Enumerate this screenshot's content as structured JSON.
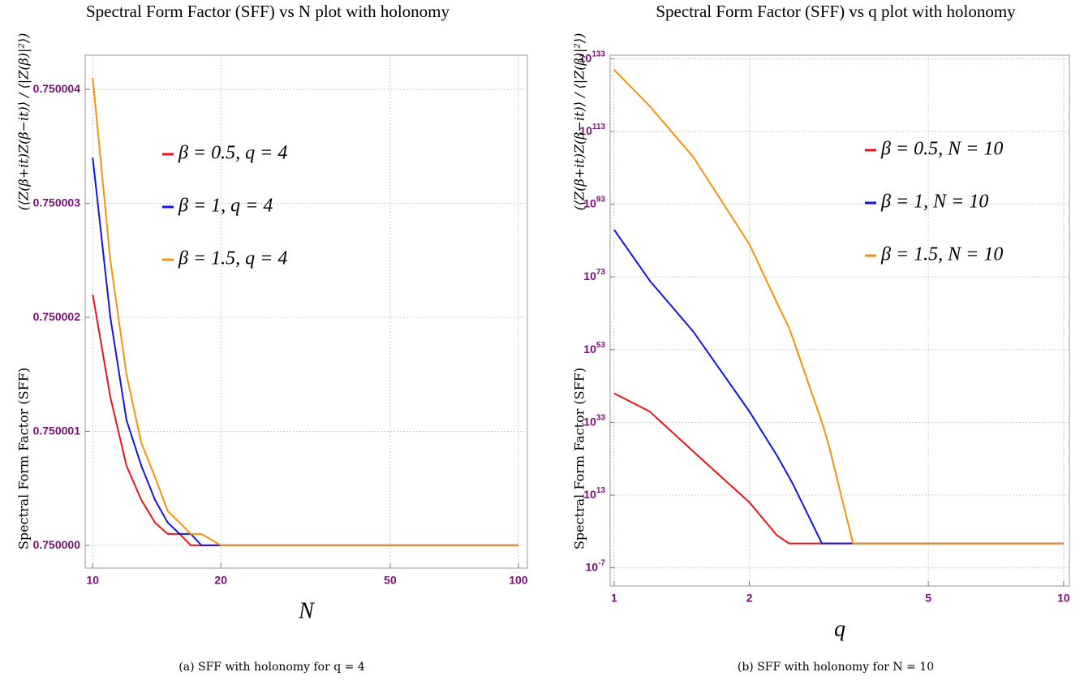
{
  "chart_data": [
    {
      "type": "line",
      "title": "Spectral Form Factor (SFF) vs N plot with holonomy",
      "x_label": "N",
      "y_label": "Spectral Form Factor (SFF)",
      "y_label_formula": "(⟨Z(β+it)Z(β−it)⟩ / ⟨|Z(β)|²⟩)",
      "caption": "(a) SFF with holonomy for q = 4",
      "log_x": true,
      "log_y": false,
      "grid": true,
      "legend": "upper-left",
      "xlim": [
        9.6,
        105
      ],
      "xticks": [
        10,
        20,
        50,
        100
      ],
      "ylim": [
        0.7499998,
        0.7500043
      ],
      "yticks": [
        {
          "value": 0.75,
          "label": "0.750000"
        },
        {
          "value": 0.750001,
          "label": "0.750001"
        },
        {
          "value": 0.750002,
          "label": "0.750002"
        },
        {
          "value": 0.750003,
          "label": "0.750003"
        },
        {
          "value": 0.750004,
          "label": "0.750004"
        }
      ],
      "x": [
        10,
        11,
        12,
        13,
        14,
        15,
        16,
        17,
        18,
        20,
        30,
        50,
        100
      ],
      "series": [
        {
          "name": "β = 0.5, q = 4",
          "color": "#e8141b",
          "values": [
            0.7500022,
            0.7500013,
            0.7500007,
            0.7500004,
            0.7500002,
            0.7500001,
            0.7500001,
            0.75,
            0.75,
            0.75,
            0.75,
            0.75,
            0.75
          ]
        },
        {
          "name": "β = 1, q = 4",
          "color": "#1414e0",
          "values": [
            0.7500034,
            0.750002,
            0.7500011,
            0.7500007,
            0.7500004,
            0.7500002,
            0.7500001,
            0.7500001,
            0.75,
            0.75,
            0.75,
            0.75,
            0.75
          ]
        },
        {
          "name": "β = 1.5, q = 4",
          "color": "#f4920f",
          "values": [
            0.7500041,
            0.7500025,
            0.7500015,
            0.7500009,
            0.7500006,
            0.7500003,
            0.7500002,
            0.7500001,
            0.7500001,
            0.75,
            0.75,
            0.75,
            0.75
          ]
        }
      ]
    },
    {
      "type": "line",
      "title": "Spectral Form Factor (SFF) vs q plot with holonomy",
      "x_label": "q",
      "y_label": "Spectral Form Factor (SFF)",
      "y_label_formula": "(⟨Z(β+it)Z(β−it)⟩ / ⟨|Z(β)|²⟩)",
      "caption": "(b) SFF with holonomy for N = 10",
      "log_x": true,
      "log_y": true,
      "grid": true,
      "legend": "upper-right",
      "xlim": [
        0.98,
        10.3
      ],
      "xticks": [
        1,
        2,
        5,
        10
      ],
      "ylim": [
        1e-12,
        1e+134
      ],
      "yticks": [
        {
          "value": 1e-07,
          "label": "10",
          "exponent": "-7"
        },
        {
          "value": 10000000000000.0,
          "label": "10",
          "exponent": "13"
        },
        {
          "value": 1e+33,
          "label": "10",
          "exponent": "33"
        },
        {
          "value": 1e+53,
          "label": "10",
          "exponent": "53"
        },
        {
          "value": 1e+73,
          "label": "10",
          "exponent": "73"
        },
        {
          "value": 1e+93,
          "label": "10",
          "exponent": "93"
        },
        {
          "value": 1e+113,
          "label": "10",
          "exponent": "113"
        },
        {
          "value": 1e+133,
          "label": "10",
          "exponent": "133"
        }
      ],
      "x": [
        1,
        1.2,
        1.5,
        2,
        2.3,
        2.45,
        2.5,
        2.9,
        3,
        3.4,
        5,
        10
      ],
      "series": [
        {
          "name": "β = 0.5, N = 10",
          "color": "#e8141b",
          "values": [
            1e+41,
            1e+36,
            1e+25,
            100000000000.0,
            100.0,
            0.5,
            0.5,
            0.5,
            0.5,
            0.5,
            0.5,
            0.5
          ]
        },
        {
          "name": "β = 1, N = 10",
          "color": "#1414e0",
          "values": [
            1e+86,
            1e+72,
            1e+58,
            1e+36,
            1e+24,
            1e+18,
            1e+16,
            0.5,
            0.5,
            0.5,
            0.5,
            0.5
          ]
        },
        {
          "name": "β = 1.5, N = 10",
          "color": "#f4920f",
          "values": [
            1e+130,
            1e+120,
            1e+106,
            1e+82,
            1e+66,
            1e+59,
            1e+56,
            1e+33,
            1e+27,
            0.5,
            0.5,
            0.5
          ]
        }
      ]
    }
  ]
}
